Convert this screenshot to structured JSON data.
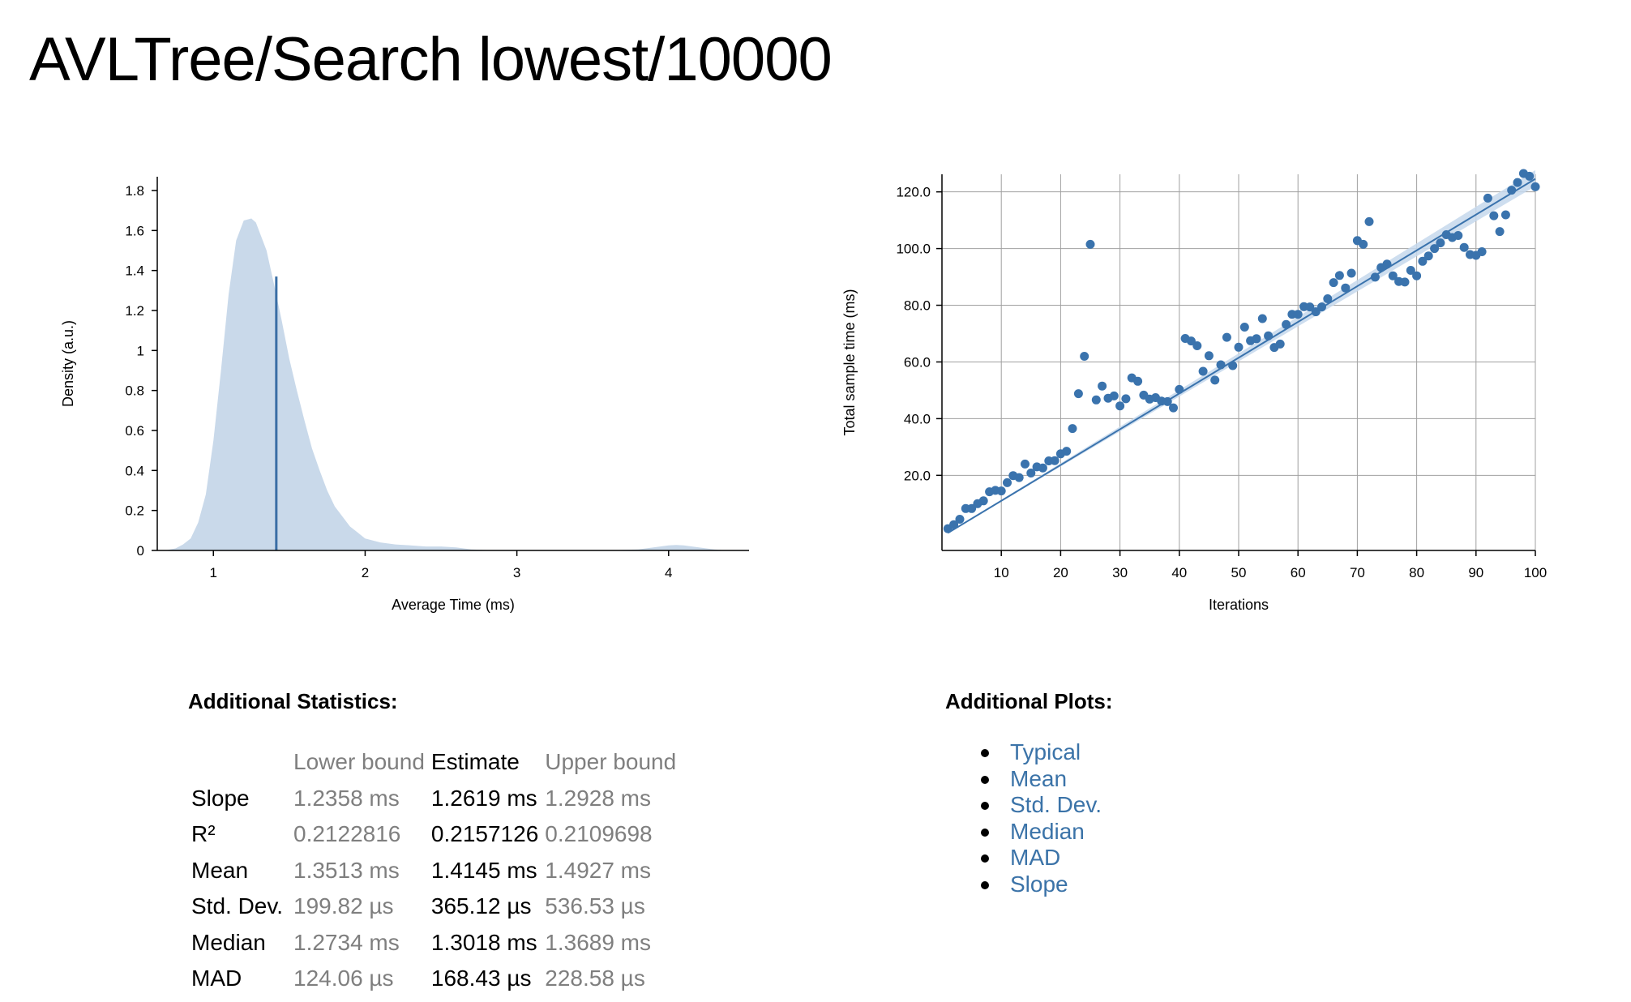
{
  "page": {
    "title": "AVLTree/Search lowest/10000"
  },
  "chart_data": [
    {
      "type": "area",
      "name": "pdf",
      "xlabel": "Average Time (ms)",
      "ylabel": "Density (a.u.)",
      "xlim": [
        0.63,
        4.53
      ],
      "ylim": [
        0,
        1.8
      ],
      "xticks": [
        "1",
        "2",
        "3",
        "4"
      ],
      "yticks": [
        "0",
        "0.2",
        "0.4",
        "0.6",
        "0.8",
        "1",
        "1.2",
        "1.4",
        "1.6",
        "1.8"
      ],
      "x": [
        0.68,
        0.75,
        0.8,
        0.85,
        0.9,
        0.95,
        1.0,
        1.05,
        1.1,
        1.15,
        1.2,
        1.25,
        1.28,
        1.3,
        1.35,
        1.4,
        1.45,
        1.5,
        1.55,
        1.6,
        1.65,
        1.7,
        1.75,
        1.8,
        1.85,
        1.9,
        1.95,
        2.0,
        2.1,
        2.2,
        2.3,
        2.4,
        2.5,
        2.6,
        2.7,
        2.8,
        3.0,
        3.2,
        3.4,
        3.6,
        3.8,
        3.9,
        4.0,
        4.05,
        4.1,
        4.2,
        4.3,
        4.4
      ],
      "y": [
        0.0,
        0.01,
        0.03,
        0.06,
        0.14,
        0.28,
        0.55,
        0.9,
        1.28,
        1.55,
        1.65,
        1.66,
        1.64,
        1.6,
        1.5,
        1.33,
        1.15,
        0.96,
        0.8,
        0.65,
        0.51,
        0.4,
        0.3,
        0.22,
        0.17,
        0.12,
        0.09,
        0.06,
        0.04,
        0.03,
        0.025,
        0.02,
        0.02,
        0.015,
        0.005,
        0.002,
        0.001,
        0.001,
        0.001,
        0.001,
        0.005,
        0.015,
        0.025,
        0.027,
        0.025,
        0.015,
        0.005,
        0.0
      ],
      "mean_line": 1.4145,
      "mean_line_height": 1.37,
      "colors": {
        "fill": "#c9d9ea",
        "line": "#3a6ea5"
      }
    },
    {
      "type": "scatter",
      "name": "regression",
      "xlabel": "Iterations",
      "ylabel": "Total sample time (ms)",
      "xlim": [
        0,
        100
      ],
      "ylim": [
        -6.5,
        126.2
      ],
      "xticks": [
        "10",
        "20",
        "30",
        "40",
        "50",
        "60",
        "70",
        "80",
        "90",
        "100"
      ],
      "yticks": [
        "20.0",
        "40.0",
        "60.0",
        "80.0",
        "100.0",
        "120.0"
      ],
      "grid": true,
      "x": [
        1,
        2,
        3,
        4,
        5,
        6,
        7,
        8,
        9,
        10,
        11,
        12,
        13,
        14,
        15,
        16,
        17,
        18,
        19,
        20,
        21,
        22,
        23,
        24,
        25,
        26,
        27,
        28,
        29,
        30,
        31,
        32,
        33,
        34,
        35,
        36,
        37,
        38,
        39,
        40,
        41,
        42,
        43,
        44,
        45,
        46,
        47,
        48,
        49,
        50,
        51,
        52,
        53,
        54,
        55,
        56,
        57,
        58,
        59,
        60,
        61,
        62,
        63,
        64,
        65,
        66,
        67,
        68,
        69,
        70,
        71,
        72,
        73,
        74,
        75,
        76,
        77,
        78,
        79,
        80,
        81,
        82,
        83,
        84,
        85,
        86,
        87,
        88,
        89,
        90,
        91,
        92,
        93,
        94,
        95,
        96,
        97,
        98,
        99,
        100
      ],
      "y": [
        1.2,
        2.6,
        4.5,
        8.3,
        8.3,
        10.0,
        11.0,
        14.2,
        14.7,
        14.5,
        17.4,
        19.9,
        19.2,
        24.0,
        20.8,
        23.0,
        22.6,
        25.1,
        25.2,
        27.6,
        28.5,
        36.5,
        48.8,
        62.0,
        101.5,
        46.6,
        51.5,
        47.2,
        48.0,
        44.5,
        47.0,
        54.4,
        53.2,
        48.3,
        46.9,
        47.4,
        46.2,
        46.0,
        43.8,
        50.3,
        68.3,
        67.4,
        65.7,
        56.7,
        62.2,
        53.6,
        59.0,
        68.7,
        58.7,
        65.2,
        72.3,
        67.5,
        68.2,
        75.3,
        69.2,
        65.1,
        66.3,
        73.2,
        76.8,
        76.8,
        79.5,
        79.4,
        77.7,
        79.4,
        82.3,
        88.0,
        90.5,
        86.1,
        91.3,
        102.8,
        101.5,
        109.5,
        89.9,
        93.3,
        94.5,
        90.4,
        88.4,
        88.2,
        92.3,
        90.4,
        95.5,
        97.4,
        100.0,
        102.0,
        104.9,
        103.9,
        104.6,
        100.4,
        97.9,
        97.6,
        98.9,
        117.8,
        111.6,
        106.0,
        111.9,
        120.6,
        123.3,
        126.5,
        125.5,
        121.8
      ],
      "regression": {
        "slope": 1.2619,
        "intercept": -1.6,
        "ci_slope": [
          1.2358,
          1.2928
        ]
      },
      "colors": {
        "point": "#3a73ad",
        "line": "#3a73ad",
        "band": "#c6d8ec",
        "grid": "#a0a0a0"
      }
    }
  ],
  "stats": {
    "title": "Additional Statistics:",
    "headers": {
      "lower": "Lower bound",
      "estimate": "Estimate",
      "upper": "Upper bound"
    },
    "rows": [
      {
        "label": "Slope",
        "lower": "1.2358 ms",
        "estimate": "1.2619 ms",
        "upper": "1.2928 ms"
      },
      {
        "label": "R²",
        "lower": "0.2122816",
        "estimate": "0.2157126",
        "upper": "0.2109698"
      },
      {
        "label": "Mean",
        "lower": "1.3513 ms",
        "estimate": "1.4145 ms",
        "upper": "1.4927 ms"
      },
      {
        "label": "Std. Dev.",
        "lower": "199.82 µs",
        "estimate": "365.12 µs",
        "upper": "536.53 µs"
      },
      {
        "label": "Median",
        "lower": "1.2734 ms",
        "estimate": "1.3018 ms",
        "upper": "1.3689 ms"
      },
      {
        "label": "MAD",
        "lower": "124.06 µs",
        "estimate": "168.43 µs",
        "upper": "228.58 µs"
      }
    ]
  },
  "plots": {
    "title": "Additional Plots:",
    "links": [
      "Typical",
      "Mean",
      "Std. Dev.",
      "Median",
      "MAD",
      "Slope"
    ]
  }
}
